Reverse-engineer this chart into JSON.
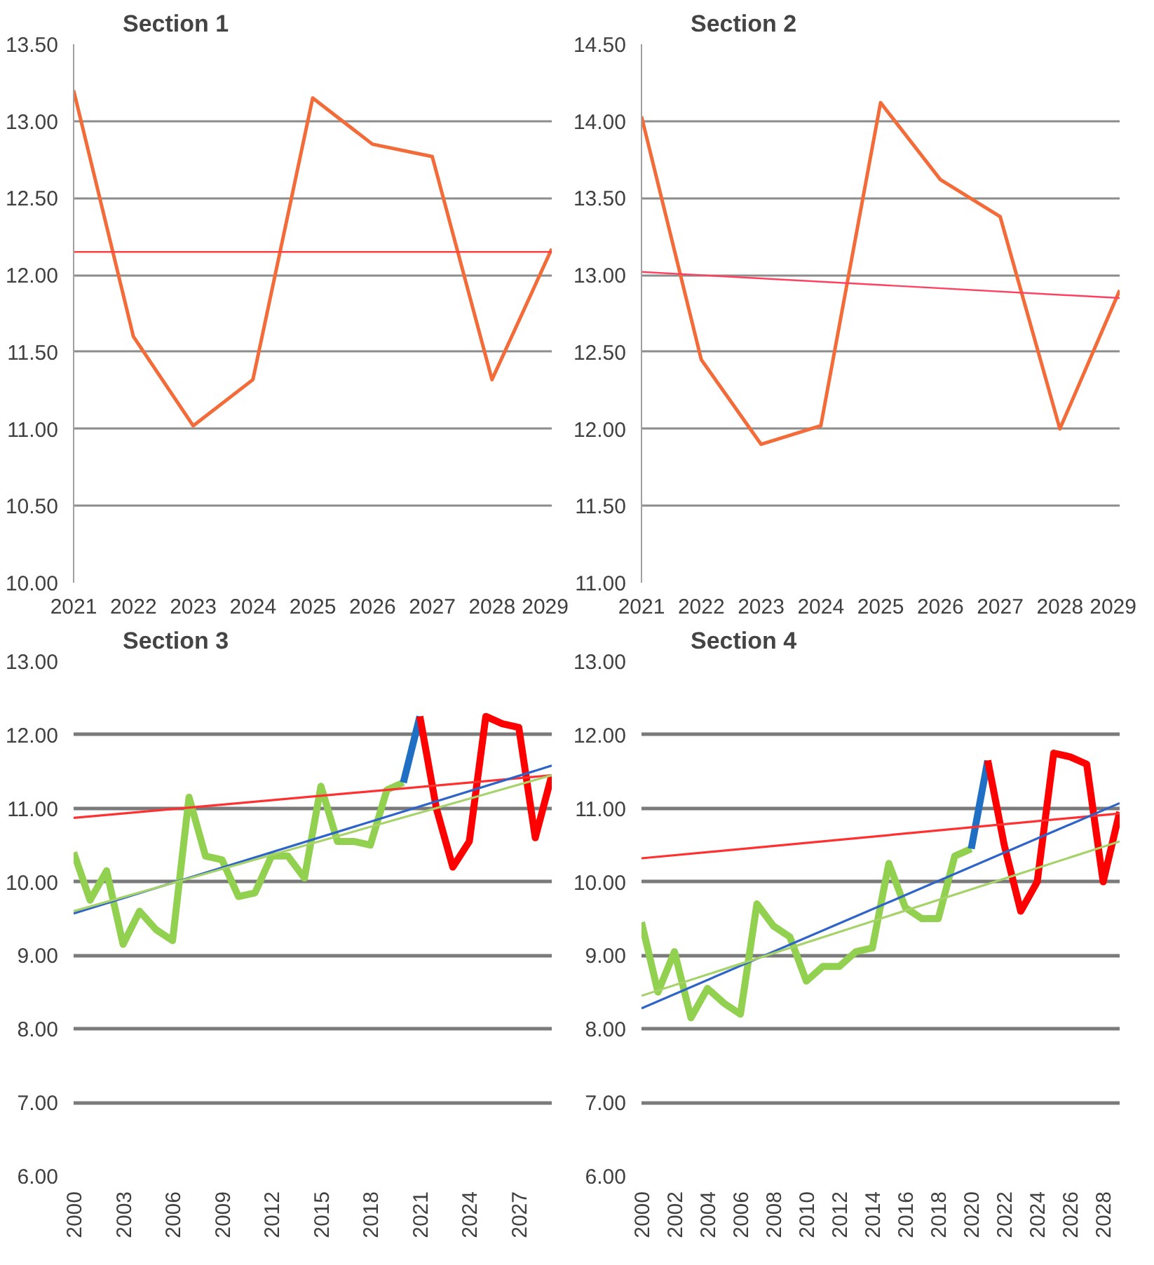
{
  "chart_data": [
    {
      "type": "line",
      "title": "Section 1",
      "xlim": [
        2021,
        2029
      ],
      "xticks": [
        2021,
        2022,
        2023,
        2024,
        2025,
        2026,
        2027,
        2028,
        2029
      ],
      "ylim": [
        10,
        13.5
      ],
      "yticks": [
        {
          "value": 10,
          "label": "10.00"
        },
        {
          "value": 10.5,
          "label": "10.50"
        },
        {
          "value": 11,
          "label": "11.00"
        },
        {
          "value": 11.5,
          "label": "11.50"
        },
        {
          "value": 12,
          "label": "12.00"
        },
        {
          "value": 12.5,
          "label": "12.50"
        },
        {
          "value": 13,
          "label": "13.00"
        },
        {
          "value": 13.5,
          "label": "13.50"
        }
      ],
      "grid": "y",
      "series": [
        {
          "color": "#f26b38",
          "x": [
            2021,
            2022,
            2023,
            2024,
            2025,
            2026,
            2027,
            2028,
            2029
          ],
          "values": [
            13.2,
            11.6,
            11.02,
            11.32,
            13.15,
            12.85,
            12.77,
            11.32,
            12.17
          ]
        },
        {
          "color": "#ff4040",
          "x": [
            2021,
            2029
          ],
          "values": [
            12.15,
            12.15
          ]
        }
      ]
    },
    {
      "type": "line",
      "title": "Section 2",
      "xlim": [
        2021,
        2029
      ],
      "xticks": [
        2021,
        2022,
        2023,
        2024,
        2025,
        2026,
        2027,
        2028,
        2029
      ],
      "ylim": [
        11,
        14.5
      ],
      "yticks": [
        {
          "value": 11,
          "label": "11.00"
        },
        {
          "value": 11.5,
          "label": "11.50"
        },
        {
          "value": 12,
          "label": "12.00"
        },
        {
          "value": 12.5,
          "label": "12.50"
        },
        {
          "value": 13,
          "label": "13.00"
        },
        {
          "value": 13.5,
          "label": "13.50"
        },
        {
          "value": 14,
          "label": "14.00"
        },
        {
          "value": 14.5,
          "label": "14.50"
        }
      ],
      "grid": "y",
      "series": [
        {
          "color": "#f26b38",
          "x": [
            2021,
            2022,
            2023,
            2024,
            2025,
            2026,
            2027,
            2028,
            2029
          ],
          "values": [
            14.03,
            12.45,
            11.9,
            12.02,
            14.12,
            13.62,
            13.38,
            12.0,
            12.9
          ]
        },
        {
          "color": "#ff4060",
          "x": [
            2021,
            2029
          ],
          "values": [
            13.02,
            12.85
          ]
        }
      ]
    },
    {
      "type": "line",
      "title": "Section 3",
      "xlim": [
        2000,
        2029
      ],
      "xticks": [
        2000,
        2003,
        2006,
        2009,
        2012,
        2015,
        2018,
        2021,
        2024,
        2027
      ],
      "ylim": [
        6,
        13
      ],
      "yticks": [
        {
          "value": 6,
          "label": "6.00"
        },
        {
          "value": 7,
          "label": "7.00"
        },
        {
          "value": 8,
          "label": "8.00"
        },
        {
          "value": 9,
          "label": "9.00"
        },
        {
          "value": 10,
          "label": "10.00"
        },
        {
          "value": 11,
          "label": "11.00"
        },
        {
          "value": 12,
          "label": "12.00"
        },
        {
          "value": 13,
          "label": "13.00"
        }
      ],
      "grid": "y",
      "series": [
        {
          "color": "#92d050",
          "x": [
            2000,
            2001,
            2002,
            2003,
            2004,
            2005,
            2006,
            2007,
            2008,
            2009,
            2010,
            2011,
            2012,
            2013,
            2014,
            2015,
            2016,
            2017,
            2018,
            2019,
            2020
          ],
          "values": [
            10.4,
            9.75,
            10.15,
            9.15,
            9.6,
            9.35,
            9.2,
            11.15,
            10.35,
            10.3,
            9.8,
            9.85,
            10.35,
            10.35,
            10.05,
            11.3,
            10.55,
            10.55,
            10.5,
            11.25,
            11.35
          ]
        },
        {
          "color": "#1f6fc5",
          "x": [
            2020,
            2021
          ],
          "values": [
            11.35,
            12.25
          ]
        },
        {
          "color": "#ff0000",
          "x": [
            2021,
            2022,
            2023,
            2024,
            2025,
            2026,
            2027,
            2028,
            2029
          ],
          "values": [
            12.25,
            11.0,
            10.2,
            10.55,
            12.25,
            12.15,
            12.1,
            10.6,
            11.45
          ]
        },
        {
          "color": "#ff3030",
          "x": [
            2000,
            2029
          ],
          "values": [
            10.87,
            11.45
          ]
        },
        {
          "color": "#2e64c8",
          "x": [
            2000,
            2029
          ],
          "values": [
            9.57,
            11.58
          ]
        },
        {
          "color": "#a6d26a",
          "x": [
            2000,
            2029
          ],
          "values": [
            9.6,
            11.45
          ]
        }
      ]
    },
    {
      "type": "line",
      "title": "Section 4",
      "xlim": [
        2000,
        2029
      ],
      "xticks": [
        2000,
        2002,
        2004,
        2006,
        2008,
        2010,
        2012,
        2014,
        2016,
        2018,
        2020,
        2022,
        2024,
        2026,
        2028
      ],
      "ylim": [
        6,
        13
      ],
      "yticks": [
        {
          "value": 6,
          "label": "6.00"
        },
        {
          "value": 7,
          "label": "7.00"
        },
        {
          "value": 8,
          "label": "8.00"
        },
        {
          "value": 9,
          "label": "9.00"
        },
        {
          "value": 10,
          "label": "10.00"
        },
        {
          "value": 11,
          "label": "11.00"
        },
        {
          "value": 12,
          "label": "12.00"
        },
        {
          "value": 13,
          "label": "13.00"
        }
      ],
      "grid": "y",
      "series": [
        {
          "color": "#92d050",
          "x": [
            2000,
            2001,
            2002,
            2003,
            2004,
            2005,
            2006,
            2007,
            2008,
            2009,
            2010,
            2011,
            2012,
            2013,
            2014,
            2015,
            2016,
            2017,
            2018,
            2019,
            2020
          ],
          "values": [
            9.45,
            8.5,
            9.05,
            8.15,
            8.55,
            8.35,
            8.2,
            9.7,
            9.4,
            9.25,
            8.65,
            8.85,
            8.85,
            9.05,
            9.1,
            10.25,
            9.65,
            9.5,
            9.5,
            10.35,
            10.45
          ]
        },
        {
          "color": "#1f6fc5",
          "x": [
            2020,
            2021
          ],
          "values": [
            10.45,
            11.65
          ]
        },
        {
          "color": "#ff0000",
          "x": [
            2021,
            2022,
            2023,
            2024,
            2025,
            2026,
            2027,
            2028,
            2029
          ],
          "values": [
            11.65,
            10.5,
            9.6,
            10.0,
            11.75,
            11.7,
            11.6,
            10.0,
            10.95
          ]
        },
        {
          "color": "#ff3030",
          "x": [
            2000,
            2029
          ],
          "values": [
            10.32,
            10.93
          ]
        },
        {
          "color": "#2e64c8",
          "x": [
            2000,
            2029
          ],
          "values": [
            8.28,
            11.07
          ]
        },
        {
          "color": "#a6d26a",
          "x": [
            2000,
            2029
          ],
          "values": [
            8.45,
            10.55
          ]
        }
      ]
    }
  ]
}
